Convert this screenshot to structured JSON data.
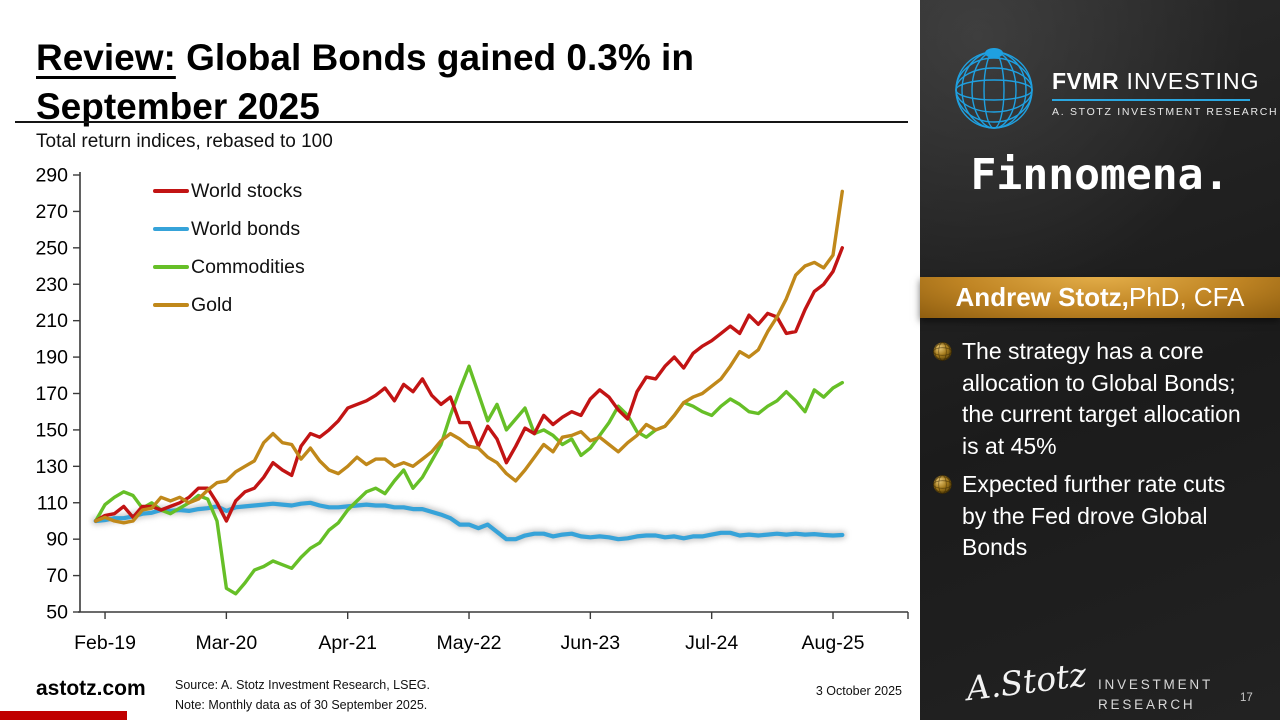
{
  "slide": {
    "title_review": "Review:",
    "title_rest": " Global Bonds gained 0.3% in September 2025",
    "subtitle": "Total return indices, rebased to 100",
    "footer": {
      "site": "astotz.com",
      "source": "Source: A. Stotz Investment Research, LSEG.",
      "note": "Note: Monthly data as of 30 September 2025.",
      "date": "3 October 2025"
    }
  },
  "chart_data": {
    "type": "line",
    "title": "Total return indices, rebased to 100",
    "x_start_month": "Jan-2019",
    "x_end_month": "Sep-2025",
    "x_ticklabels": [
      "Feb-19",
      "Mar-20",
      "Apr-21",
      "May-22",
      "Jun-23",
      "Jul-24",
      "Aug-25"
    ],
    "x_tick_month_index": [
      1,
      14,
      27,
      40,
      53,
      66,
      79
    ],
    "ylim": [
      50,
      290
    ],
    "ytick_step": 20,
    "grid": false,
    "legend_position": "top-left-inside",
    "series": [
      {
        "name": "World stocks",
        "color": "#C21414",
        "glow": false,
        "values": [
          100,
          103,
          104,
          108,
          102,
          108,
          108,
          106,
          108,
          110,
          113,
          118,
          118,
          110,
          100,
          111,
          116,
          118,
          124,
          132,
          128,
          125,
          141,
          148,
          146,
          150,
          155,
          162,
          164,
          166,
          169,
          173,
          166,
          175,
          171,
          178,
          169,
          164,
          168,
          154,
          154,
          141,
          152,
          145,
          132,
          141,
          151,
          148,
          158,
          153,
          157,
          160,
          158,
          167,
          172,
          168,
          161,
          156,
          171,
          179,
          178,
          185,
          190,
          184,
          192,
          196,
          199,
          203,
          207,
          203,
          213,
          208,
          214,
          212,
          203,
          204,
          216,
          226,
          230,
          237,
          250
        ]
      },
      {
        "name": "World bonds",
        "color": "#36A3D9",
        "glow": true,
        "values": [
          100,
          100.5,
          101.5,
          101.5,
          102.5,
          104,
          104.5,
          106,
          105.5,
          106,
          105.5,
          106.5,
          107,
          108,
          105.5,
          107.5,
          108,
          108.5,
          109,
          109.5,
          109,
          108.5,
          109.5,
          110,
          108.5,
          107.5,
          107.5,
          108,
          108.5,
          109,
          108.5,
          108.5,
          107.5,
          107.5,
          106.5,
          106.5,
          105,
          103.5,
          101.5,
          98,
          98,
          96,
          98,
          94,
          90,
          90,
          92,
          93,
          93,
          91.5,
          92.5,
          93,
          91.5,
          91,
          91.5,
          91,
          90,
          90.5,
          91.5,
          92,
          92,
          91,
          91.5,
          90.5,
          91.5,
          91.5,
          92.5,
          93.5,
          93.5,
          92,
          92.5,
          92,
          92.5,
          93,
          92.5,
          93,
          92.5,
          92.8,
          92.3,
          92,
          92.3
        ]
      },
      {
        "name": "Commodities",
        "color": "#66BF27",
        "glow": false,
        "values": [
          100,
          109,
          113,
          116,
          114,
          107,
          110,
          106,
          104,
          107,
          110,
          114,
          112,
          100,
          63,
          60,
          66,
          73,
          75,
          78,
          76,
          74,
          80,
          85,
          88,
          95,
          99,
          106,
          111,
          116,
          118,
          115,
          122,
          128,
          118,
          124,
          133,
          142,
          158,
          172,
          185,
          170,
          155,
          164,
          150,
          156,
          162,
          148,
          150,
          147,
          142,
          145,
          136,
          140,
          147,
          154,
          163,
          158,
          149,
          146,
          150,
          152,
          158,
          165,
          163,
          160,
          158,
          163,
          167,
          164,
          160,
          159,
          163,
          166,
          171,
          166,
          160,
          172,
          168,
          173,
          176
        ]
      },
      {
        "name": "Gold",
        "color": "#C0881A",
        "glow": false,
        "values": [
          100,
          102,
          100,
          99,
          100,
          106,
          107,
          113,
          111,
          113,
          110,
          112,
          117,
          121,
          122,
          127,
          130,
          133,
          143,
          148,
          143,
          142,
          134,
          140,
          133,
          128,
          126,
          130,
          135,
          131,
          134,
          134,
          130,
          132,
          130,
          134,
          138,
          144,
          148,
          145,
          141,
          140,
          135,
          132,
          126,
          122,
          128,
          135,
          142,
          138,
          146,
          147,
          149,
          144,
          146,
          142,
          138,
          143,
          147,
          153,
          150,
          152,
          158,
          165,
          168,
          170,
          174,
          178,
          185,
          193,
          190,
          194,
          204,
          212,
          222,
          235,
          240,
          242,
          239,
          246,
          281
        ]
      }
    ]
  },
  "sidebar": {
    "logo": {
      "brand_bold": "FVMR",
      "brand_light": " INVESTING",
      "sub": "A. STOTZ INVESTMENT RESEARCH"
    },
    "partner_logo": "Finnomena.",
    "author_band": {
      "name_bold": "Andrew Stotz,",
      "name_rest": " PhD, CFA"
    },
    "bullets": [
      "The strategy has a core allocation to Global Bonds; the current target allocation is at 45%",
      "Expected further rate cuts by the Fed drove Global Bonds"
    ],
    "signature": "A.Stotz",
    "footer_lines": [
      "INVESTMENT",
      "RESEARCH"
    ],
    "page_number": "17"
  }
}
